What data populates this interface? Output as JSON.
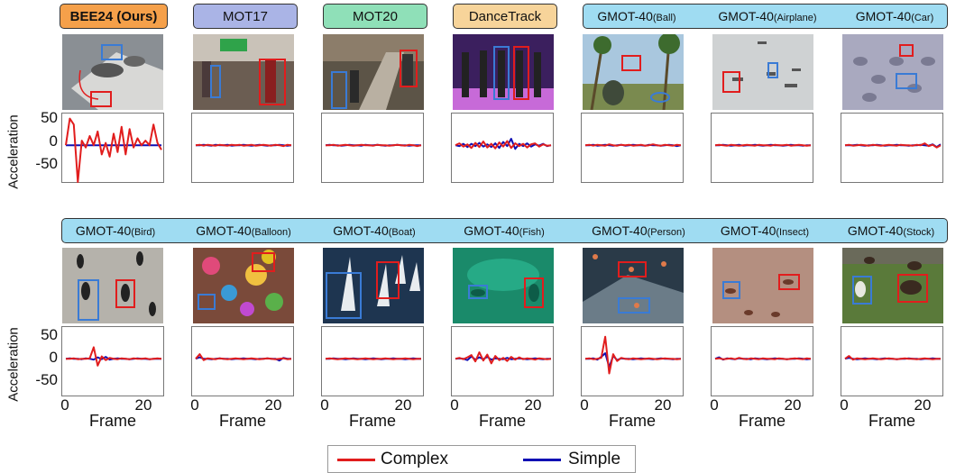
{
  "row1": [
    {
      "name": "BEE24 (Ours)",
      "panel": "bee24"
    },
    {
      "name": "MOT17",
      "panel": "mot17"
    },
    {
      "name": "MOT20",
      "panel": "mot20"
    },
    {
      "name": "DanceTrack",
      "panel": "dance"
    }
  ],
  "gmot_row1": [
    {
      "main": "GMOT-40",
      "sub": "(Ball)"
    },
    {
      "main": "GMOT-40",
      "sub": "(Airplane)"
    },
    {
      "main": "GMOT-40",
      "sub": "(Car)"
    }
  ],
  "gmot_row2": [
    {
      "main": "GMOT-40",
      "sub": "(Bird)"
    },
    {
      "main": "GMOT-40",
      "sub": "(Balloon)"
    },
    {
      "main": "GMOT-40",
      "sub": "(Boat)"
    },
    {
      "main": "GMOT-40",
      "sub": "(Fish)"
    },
    {
      "main": "GMOT-40",
      "sub": "(Person)"
    },
    {
      "main": "GMOT-40",
      "sub": "(Insect)"
    },
    {
      "main": "GMOT-40",
      "sub": "(Stock)"
    }
  ],
  "colors": {
    "bee24": "#f5a04a",
    "mot17": "#aab4e6",
    "mot20": "#8fe0b8",
    "dance": "#f7d49a",
    "gmot": "#9fdcf2",
    "complex": "#e11d1d",
    "simple": "#1010b4"
  },
  "axis": {
    "ylabel": "Acceleration",
    "xlabel": "Frame",
    "yticks": [
      "50",
      "0",
      "-50"
    ],
    "xticks": [
      "0",
      "20"
    ]
  },
  "legend": {
    "complex": "Complex",
    "simple": "Simple"
  },
  "chart_data": {
    "type": "line",
    "xlabel": "Frame",
    "ylabel": "Acceleration",
    "xlim": [
      0,
      24
    ],
    "ylim": [
      -80,
      65
    ],
    "x": [
      0,
      1,
      2,
      3,
      4,
      5,
      6,
      7,
      8,
      9,
      10,
      11,
      12,
      13,
      14,
      15,
      16,
      17,
      18,
      19,
      20,
      21,
      22,
      23,
      24
    ],
    "panels": [
      {
        "dataset": "BEE24 (Ours)",
        "series": [
          {
            "name": "Complex",
            "values": [
              0,
              58,
              45,
              -80,
              10,
              -5,
              20,
              0,
              30,
              -20,
              5,
              -25,
              25,
              -15,
              40,
              -20,
              35,
              -5,
              15,
              0,
              10,
              0,
              45,
              5,
              -10
            ]
          },
          {
            "name": "Simple",
            "values": [
              0,
              0,
              0,
              0,
              0,
              0,
              0,
              0,
              0,
              0,
              0,
              0,
              0,
              0,
              0,
              0,
              0,
              0,
              0,
              0,
              0,
              0,
              0,
              0,
              0
            ]
          }
        ]
      },
      {
        "dataset": "MOT17",
        "series": [
          {
            "name": "Complex",
            "values": [
              0,
              1,
              -1,
              1,
              0,
              -1,
              1,
              0,
              -1,
              1,
              0,
              1,
              -1,
              0,
              1,
              -1,
              0,
              1,
              0,
              -1,
              1,
              0,
              -2,
              1,
              0
            ]
          },
          {
            "name": "Simple",
            "values": [
              0,
              0,
              1,
              0,
              -1,
              1,
              0,
              0,
              1,
              -1,
              0,
              0,
              1,
              0,
              -1,
              0,
              1,
              0,
              -1,
              0,
              0,
              1,
              0,
              -1,
              0
            ]
          }
        ]
      },
      {
        "dataset": "MOT20",
        "series": [
          {
            "name": "Complex",
            "values": [
              0,
              0,
              1,
              -1,
              0,
              1,
              0,
              -1,
              0,
              1,
              0,
              0,
              -1,
              1,
              0,
              0,
              -1,
              0,
              1,
              0,
              -1,
              1,
              0,
              -2,
              0
            ]
          },
          {
            "name": "Simple",
            "values": [
              0,
              1,
              0,
              0,
              -1,
              0,
              1,
              0,
              0,
              -1,
              1,
              0,
              0,
              1,
              0,
              -1,
              0,
              0,
              1,
              0,
              0,
              -1,
              0,
              0,
              0
            ]
          }
        ]
      },
      {
        "dataset": "DanceTrack",
        "series": [
          {
            "name": "Complex",
            "values": [
              0,
              4,
              -3,
              2,
              -6,
              5,
              -4,
              8,
              -5,
              3,
              -7,
              6,
              -3,
              9,
              -6,
              4,
              -2,
              3,
              -5,
              2,
              4,
              -3,
              2,
              -1,
              0
            ]
          },
          {
            "name": "Simple",
            "values": [
              0,
              -2,
              3,
              -4,
              3,
              -2,
              5,
              -3,
              2,
              -4,
              4,
              -6,
              7,
              -2,
              14,
              -8,
              3,
              -2,
              4,
              -3,
              2,
              -1,
              3,
              -2,
              0
            ]
          }
        ]
      },
      {
        "dataset": "GMOT-40(Ball)",
        "series": [
          {
            "name": "Complex",
            "values": [
              0,
              1,
              -1,
              1,
              0,
              -1,
              2,
              0,
              -1,
              1,
              0,
              1,
              -1,
              0,
              1,
              -1,
              0,
              2,
              0,
              -1,
              1,
              0,
              -1,
              1,
              0
            ]
          },
          {
            "name": "Simple",
            "values": [
              0,
              0,
              1,
              -1,
              0,
              1,
              0,
              -1,
              0,
              1,
              -1,
              0,
              1,
              0,
              0,
              -1,
              1,
              0,
              0,
              -1,
              0,
              1,
              0,
              -2,
              0
            ]
          }
        ]
      },
      {
        "dataset": "GMOT-40(Airplane)",
        "series": [
          {
            "name": "Complex",
            "values": [
              0,
              1,
              0,
              -1,
              1,
              0,
              -1,
              0,
              1,
              0,
              -1,
              1,
              0,
              0,
              -1,
              1,
              0,
              0,
              1,
              -1,
              0,
              1,
              0,
              -1,
              0
            ]
          },
          {
            "name": "Simple",
            "values": [
              0,
              0,
              1,
              0,
              -1,
              0,
              1,
              -1,
              0,
              0,
              1,
              0,
              -1,
              0,
              1,
              0,
              0,
              -1,
              0,
              1,
              0,
              0,
              -1,
              0,
              0
            ]
          }
        ]
      },
      {
        "dataset": "GMOT-40(Car)",
        "series": [
          {
            "name": "Complex",
            "values": [
              0,
              1,
              -1,
              0,
              1,
              0,
              -1,
              1,
              0,
              -1,
              0,
              1,
              0,
              -1,
              1,
              0,
              0,
              -1,
              1,
              0,
              4,
              -2,
              1,
              -5,
              0
            ]
          },
          {
            "name": "Simple",
            "values": [
              0,
              0,
              0,
              1,
              0,
              -1,
              0,
              0,
              1,
              0,
              -1,
              0,
              0,
              1,
              0,
              0,
              -1,
              0,
              0,
              1,
              0,
              -1,
              2,
              -4,
              2
            ]
          }
        ]
      },
      {
        "dataset": "GMOT-40(Bird)",
        "series": [
          {
            "name": "Complex",
            "values": [
              0,
              0,
              1,
              -1,
              0,
              0,
              1,
              25,
              -15,
              5,
              -3,
              2,
              0,
              -1,
              1,
              0,
              -1,
              1,
              0,
              0,
              1,
              -1,
              0,
              1,
              0
            ]
          },
          {
            "name": "Simple",
            "values": [
              0,
              1,
              0,
              0,
              -1,
              1,
              0,
              -2,
              3,
              -1,
              4,
              -2,
              0,
              1,
              0,
              0,
              -1,
              0,
              1,
              0,
              0,
              -1,
              0,
              0,
              0
            ]
          }
        ]
      },
      {
        "dataset": "GMOT-40(Balloon)",
        "series": [
          {
            "name": "Complex",
            "values": [
              0,
              10,
              -3,
              1,
              0,
              -1,
              1,
              0,
              -1,
              0,
              1,
              0,
              -1,
              0,
              1,
              0,
              -1,
              0,
              1,
              0,
              -1,
              0,
              1,
              -1,
              0
            ]
          },
          {
            "name": "Simple",
            "values": [
              0,
              3,
              0,
              0,
              -1,
              0,
              1,
              0,
              0,
              -1,
              0,
              0,
              1,
              0,
              0,
              -1,
              0,
              0,
              1,
              0,
              0,
              -4,
              2,
              0,
              0
            ]
          }
        ]
      },
      {
        "dataset": "GMOT-40(Boat)",
        "series": [
          {
            "name": "Complex",
            "values": [
              0,
              1,
              0,
              -1,
              0,
              1,
              0,
              0,
              -1,
              0,
              1,
              0,
              -1,
              0,
              0,
              1,
              0,
              -1,
              0,
              0,
              1,
              0,
              -1,
              0,
              0
            ]
          },
          {
            "name": "Simple",
            "values": [
              0,
              0,
              1,
              0,
              0,
              -1,
              0,
              1,
              0,
              0,
              -1,
              0,
              1,
              0,
              -1,
              0,
              0,
              1,
              0,
              0,
              -1,
              0,
              1,
              0,
              0
            ]
          }
        ]
      },
      {
        "dataset": "GMOT-40(Fish)",
        "series": [
          {
            "name": "Complex",
            "values": [
              0,
              2,
              -1,
              3,
              8,
              -6,
              14,
              -4,
              9,
              -10,
              6,
              -3,
              2,
              -5,
              4,
              -2,
              3,
              -1,
              1,
              0,
              -2,
              1,
              0,
              -1,
              0
            ]
          },
          {
            "name": "Simple",
            "values": [
              0,
              1,
              0,
              -3,
              5,
              -2,
              3,
              -1,
              4,
              -2,
              1,
              0,
              -1,
              2,
              -1,
              0,
              1,
              0,
              -1,
              0,
              1,
              0,
              -1,
              0,
              0
            ]
          }
        ]
      },
      {
        "dataset": "GMOT-40(Person)",
        "series": [
          {
            "name": "Complex",
            "values": [
              0,
              1,
              -1,
              0,
              2,
              48,
              -32,
              10,
              -5,
              2,
              0,
              -1,
              1,
              0,
              -1,
              0,
              1,
              0,
              -1,
              0,
              1,
              0,
              0,
              -1,
              0
            ]
          },
          {
            "name": "Simple",
            "values": [
              0,
              0,
              1,
              -2,
              4,
              12,
              -18,
              6,
              -3,
              1,
              0,
              0,
              -1,
              0,
              1,
              0,
              0,
              -1,
              0,
              1,
              0,
              0,
              -1,
              0,
              0
            ]
          }
        ]
      },
      {
        "dataset": "GMOT-40(Insect)",
        "series": [
          {
            "name": "Complex",
            "values": [
              0,
              1,
              -1,
              0,
              1,
              -1,
              2,
              0,
              -1,
              1,
              0,
              -1,
              1,
              0,
              0,
              -1,
              1,
              0,
              -1,
              0,
              1,
              0,
              -1,
              1,
              0
            ]
          },
          {
            "name": "Simple",
            "values": [
              0,
              3,
              -2,
              1,
              0,
              -1,
              1,
              0,
              0,
              -1,
              1,
              0,
              0,
              -1,
              0,
              1,
              0,
              0,
              -1,
              0,
              0,
              1,
              0,
              -1,
              0
            ]
          }
        ]
      },
      {
        "dataset": "GMOT-40(Stock)",
        "series": [
          {
            "name": "Complex",
            "values": [
              0,
              6,
              -2,
              1,
              0,
              -1,
              0,
              1,
              0,
              -1,
              0,
              1,
              0,
              -1,
              0,
              1,
              0,
              0,
              -1,
              0,
              1,
              0,
              -1,
              0,
              0
            ]
          },
          {
            "name": "Simple",
            "values": [
              0,
              2,
              0,
              -1,
              0,
              1,
              0,
              0,
              -1,
              0,
              1,
              0,
              0,
              -1,
              0,
              0,
              1,
              0,
              0,
              -1,
              0,
              0,
              1,
              0,
              0
            ]
          }
        ]
      }
    ]
  }
}
